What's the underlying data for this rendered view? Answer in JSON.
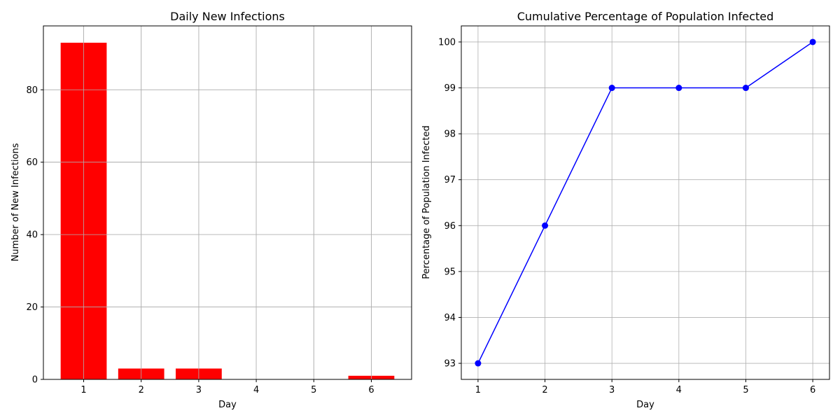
{
  "colors": {
    "bar": "#ff0000",
    "line": "#0000ff",
    "grid": "#b0b0b0",
    "axis": "#000000"
  },
  "chart_data": [
    {
      "type": "bar",
      "title": "Daily New Infections",
      "xlabel": "Day",
      "ylabel": "Number of New Infections",
      "categories": [
        "1",
        "2",
        "3",
        "4",
        "5",
        "6"
      ],
      "x": [
        1,
        2,
        3,
        4,
        5,
        6
      ],
      "values": [
        93,
        3,
        3,
        0,
        0,
        1
      ],
      "ylim": [
        0,
        97.65
      ],
      "xlim": [
        0.3,
        6.7
      ],
      "yticks": [
        0,
        20,
        40,
        60,
        80
      ],
      "ytick_labels": [
        "0",
        "20",
        "40",
        "60",
        "80"
      ],
      "xticks": [
        1,
        2,
        3,
        4,
        5,
        6
      ],
      "xtick_labels": [
        "1",
        "2",
        "3",
        "4",
        "5",
        "6"
      ],
      "grid": true,
      "color": "#ff0000"
    },
    {
      "type": "line",
      "title": "Cumulative Percentage of Population Infected",
      "xlabel": "Day",
      "ylabel": "Percentage of Population Infected",
      "x": [
        1,
        2,
        3,
        4,
        5,
        6
      ],
      "values": [
        93,
        96,
        99,
        99,
        99,
        100
      ],
      "ylim": [
        92.65,
        100.35
      ],
      "xlim": [
        0.75,
        6.25
      ],
      "yticks": [
        93,
        94,
        95,
        96,
        97,
        98,
        99,
        100
      ],
      "ytick_labels": [
        "93",
        "94",
        "95",
        "96",
        "97",
        "98",
        "99",
        "100"
      ],
      "xticks": [
        1,
        2,
        3,
        4,
        5,
        6
      ],
      "xtick_labels": [
        "1",
        "2",
        "3",
        "4",
        "5",
        "6"
      ],
      "grid": true,
      "marker": "circle",
      "color": "#0000ff"
    }
  ]
}
